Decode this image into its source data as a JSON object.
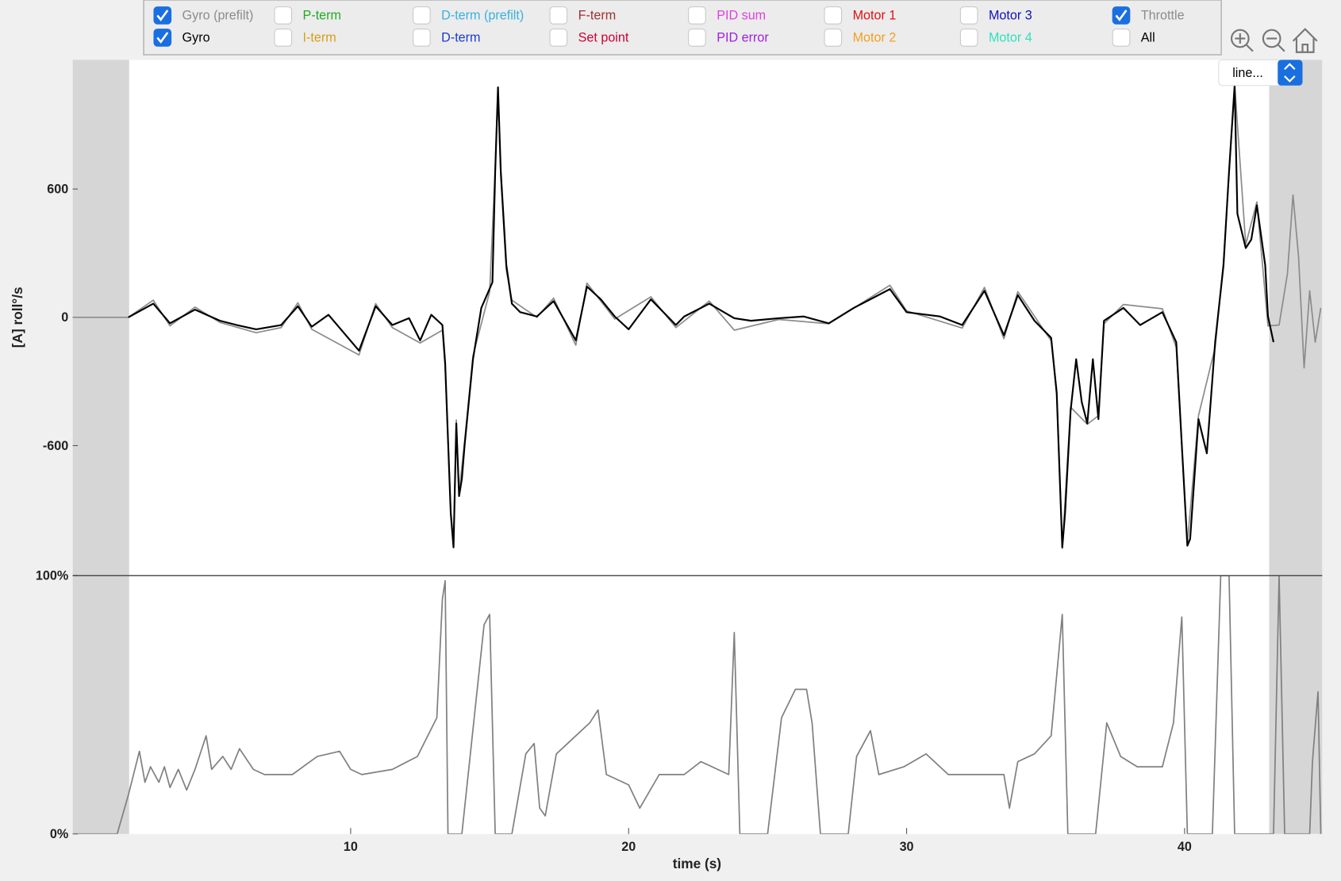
{
  "toolbar": {
    "checkboxes": [
      {
        "label": "Gyro (prefilt)",
        "color": "#8c8c8c",
        "checked": true
      },
      {
        "label": "Gyro",
        "color": "#000000",
        "checked": true
      },
      {
        "label": "P-term",
        "color": "#22aa22",
        "checked": false
      },
      {
        "label": "I-term",
        "color": "#d4a017",
        "checked": false
      },
      {
        "label": "D-term (prefilt)",
        "color": "#3ab0e0",
        "checked": false
      },
      {
        "label": "D-term",
        "color": "#1a3ccc",
        "checked": false
      },
      {
        "label": "F-term",
        "color": "#a03030",
        "checked": false
      },
      {
        "label": "Set point",
        "color": "#cc0033",
        "checked": false
      },
      {
        "label": "PID sum",
        "color": "#e040e0",
        "checked": false
      },
      {
        "label": "PID error",
        "color": "#a020e0",
        "checked": false
      },
      {
        "label": "Motor 1",
        "color": "#e01010",
        "checked": false
      },
      {
        "label": "Motor 2",
        "color": "#f0a020",
        "checked": false
      },
      {
        "label": "Motor 3",
        "color": "#1010c0",
        "checked": false
      },
      {
        "label": "Motor 4",
        "color": "#30e0c0",
        "checked": false
      },
      {
        "label": "Throttle",
        "color": "#8c8c8c",
        "checked": true
      },
      {
        "label": "All",
        "color": "#000000",
        "checked": false
      }
    ],
    "dropdown": "line..."
  },
  "chart_data": [
    {
      "type": "line",
      "ylabel": "[A] roll°/s",
      "xlim": [
        0,
        44.95
      ],
      "ylim": [
        -1208,
        1204
      ],
      "yticks": [
        -600,
        0,
        600
      ],
      "series": [
        {
          "name": "Gyro (prefilt)",
          "color": "#8c8c8c",
          "x": [
            0,
            2.0,
            2.9,
            3.5,
            4.4,
            5.3,
            6.6,
            7.5,
            8.1,
            8.6,
            10.3,
            10.9,
            11.5,
            12.5,
            13.3,
            13.4,
            13.6,
            13.7,
            13.8,
            13.9,
            14.1,
            14.4,
            15.0,
            15.2,
            15.3,
            15.4,
            15.6,
            15.8,
            16.7,
            17.3,
            18.1,
            18.5,
            19.5,
            20.8,
            21.7,
            22.9,
            23.8,
            25.4,
            27.2,
            29.4,
            30.0,
            32.0,
            32.8,
            33.5,
            34.0,
            35.2,
            35.4,
            35.6,
            35.9,
            36.5,
            36.9,
            37.1,
            37.8,
            39.2,
            39.7,
            40.1,
            40.5,
            41.1,
            41.4,
            41.8,
            42.2,
            42.6,
            43.0,
            43.4,
            43.7,
            43.9,
            44.1,
            44.3,
            44.5,
            44.7,
            44.9
          ],
          "values": [
            0,
            0,
            80,
            -40,
            48,
            -24,
            -72,
            -48,
            68,
            -56,
            -176,
            64,
            -48,
            -120,
            -60,
            -236,
            -900,
            -1064,
            -480,
            -820,
            -580,
            -180,
            120,
            700,
            1060,
            660,
            220,
            80,
            0,
            90,
            -130,
            160,
            -8,
            96,
            -48,
            76,
            -60,
            -10,
            -30,
            150,
            30,
            -50,
            140,
            -100,
            120,
            -110,
            -340,
            -1080,
            -420,
            -500,
            -460,
            -30,
            60,
            40,
            -140,
            -1060,
            -460,
            -140,
            260,
            1090,
            340,
            540,
            -40,
            -36,
            204,
            572,
            284,
            -236,
            124,
            -116,
            44
          ]
        },
        {
          "name": "Gyro",
          "color": "#000000",
          "x": [
            2.0,
            2.9,
            3.5,
            4.4,
            5.3,
            5.9,
            6.6,
            7.5,
            8.1,
            8.6,
            9.2,
            10.3,
            10.9,
            11.5,
            12.1,
            12.5,
            12.9,
            13.3,
            13.4,
            13.6,
            13.7,
            13.8,
            13.9,
            14.0,
            14.1,
            14.4,
            14.7,
            15.1,
            15.2,
            15.3,
            15.4,
            15.6,
            15.8,
            16.1,
            16.7,
            17.3,
            17.7,
            18.1,
            18.5,
            19.0,
            19.5,
            20.0,
            20.8,
            21.7,
            22.0,
            22.9,
            23.8,
            24.4,
            25.4,
            26.3,
            27.2,
            28.1,
            29.4,
            30.0,
            31.2,
            32.0,
            32.8,
            33.5,
            34.0,
            34.6,
            35.2,
            35.4,
            35.6,
            35.7,
            35.9,
            36.1,
            36.3,
            36.5,
            36.7,
            36.9,
            37.1,
            37.8,
            38.4,
            39.2,
            39.7,
            39.9,
            40.1,
            40.2,
            40.5,
            40.8,
            41.1,
            41.4,
            41.6,
            41.8,
            41.9,
            42.2,
            42.4,
            42.6,
            42.9,
            43.0,
            43.2
          ],
          "values": [
            0,
            64,
            -28,
            36,
            -16,
            -36,
            -56,
            -36,
            52,
            -44,
            12,
            -156,
            52,
            -36,
            -4,
            -108,
            12,
            -36,
            -216,
            -916,
            -1076,
            -496,
            -836,
            -756,
            -596,
            -196,
            44,
            164,
            684,
            1076,
            684,
            244,
            64,
            24,
            4,
            76,
            -16,
            -108,
            144,
            84,
            4,
            -56,
            84,
            -36,
            4,
            64,
            -4,
            -16,
            -4,
            4,
            -28,
            44,
            132,
            24,
            4,
            -36,
            124,
            -84,
            104,
            -16,
            -96,
            -356,
            -1076,
            -916,
            -436,
            -196,
            -396,
            -496,
            -196,
            -476,
            -16,
            44,
            -36,
            24,
            -116,
            -596,
            -1068,
            -1036,
            -476,
            -636,
            -116,
            244,
            684,
            1084,
            484,
            324,
            364,
            524,
            244,
            4,
            -116
          ]
        }
      ]
    },
    {
      "type": "line",
      "xlabel": "time (s)",
      "xlim": [
        0,
        44.95
      ],
      "ylim": [
        0,
        100
      ],
      "yticks": [
        {
          "value": 0,
          "label": "0%"
        },
        {
          "value": 100,
          "label": "100%"
        }
      ],
      "xticks": [
        10,
        20,
        30,
        40
      ],
      "series": [
        {
          "name": "Throttle",
          "color": "#808080",
          "x": [
            0,
            1.6,
            2.0,
            2.4,
            2.6,
            2.8,
            3.1,
            3.3,
            3.5,
            3.8,
            4.1,
            4.4,
            4.8,
            5.0,
            5.4,
            5.7,
            6.0,
            6.5,
            6.9,
            7.9,
            8.8,
            9.6,
            10.0,
            10.4,
            11.5,
            12.4,
            13.1,
            13.3,
            13.4,
            13.5,
            14.0,
            14.8,
            15.0,
            15.2,
            15.8,
            16.3,
            16.6,
            16.8,
            17.0,
            17.4,
            17.9,
            18.6,
            18.9,
            19.2,
            20.0,
            20.4,
            21.1,
            22.0,
            22.6,
            23.6,
            23.8,
            24.0,
            25.0,
            25.5,
            26.0,
            26.4,
            26.6,
            26.9,
            27.9,
            28.2,
            28.7,
            29.0,
            29.9,
            30.7,
            31.5,
            32.7,
            33.5,
            33.7,
            34.0,
            34.6,
            35.2,
            35.6,
            35.8,
            36.8,
            37.2,
            37.7,
            38.3,
            39.2,
            39.6,
            39.9,
            40.1,
            41.0,
            41.3,
            41.6,
            41.8,
            43.2,
            43.4,
            43.6,
            44.5,
            44.6,
            44.8,
            44.9
          ],
          "values": [
            0,
            0,
            15,
            32,
            20,
            26,
            20,
            26,
            18,
            25,
            17,
            25,
            38,
            25,
            30,
            25,
            33,
            25,
            23,
            23,
            30,
            32,
            25,
            23,
            25,
            30,
            45,
            91,
            98,
            0,
            0,
            81,
            85,
            0,
            0,
            31,
            35,
            10,
            7,
            31,
            36,
            43,
            48,
            23,
            19,
            10,
            23,
            23,
            28,
            23,
            78,
            0,
            0,
            45,
            56,
            56,
            43,
            0,
            0,
            30,
            40,
            23,
            26,
            31,
            23,
            23,
            23,
            10,
            28,
            31,
            38,
            85,
            0,
            0,
            43,
            30,
            26,
            26,
            43,
            84,
            0,
            0,
            100,
            100,
            0,
            0,
            100,
            0,
            0,
            28,
            55,
            0
          ]
        }
      ]
    }
  ]
}
